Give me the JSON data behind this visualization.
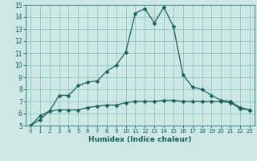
{
  "xlabel": "Humidex (Indice chaleur)",
  "background_color": "#cce8e4",
  "grid_color": "#8bbdb8",
  "line_color": "#1a5f5a",
  "spine_color": "#3a7f7a",
  "xlim": [
    -0.5,
    23.5
  ],
  "ylim": [
    5,
    15
  ],
  "xticks": [
    0,
    1,
    2,
    3,
    4,
    5,
    6,
    7,
    8,
    9,
    10,
    11,
    12,
    13,
    14,
    15,
    16,
    17,
    18,
    19,
    20,
    21,
    22,
    23
  ],
  "yticks": [
    5,
    6,
    7,
    8,
    9,
    10,
    11,
    12,
    13,
    14,
    15
  ],
  "line1_x": [
    0,
    1,
    2,
    3,
    4,
    5,
    6,
    7,
    8,
    9,
    10,
    11,
    12,
    13,
    14,
    15,
    16,
    17,
    18,
    19,
    20,
    21,
    22,
    23
  ],
  "line1_y": [
    5.0,
    5.5,
    6.2,
    7.5,
    7.5,
    8.3,
    8.6,
    8.7,
    9.5,
    10.0,
    11.1,
    14.3,
    14.7,
    13.5,
    14.8,
    13.2,
    9.2,
    8.2,
    8.0,
    7.5,
    7.1,
    7.0,
    6.5,
    6.3
  ],
  "line2_x": [
    0,
    1,
    2,
    3,
    4,
    5,
    6,
    7,
    8,
    9,
    10,
    11,
    12,
    13,
    14,
    15,
    16,
    17,
    18,
    19,
    20,
    21,
    22,
    23
  ],
  "line2_y": [
    5.0,
    5.8,
    6.2,
    6.3,
    6.3,
    6.3,
    6.5,
    6.6,
    6.7,
    6.7,
    6.9,
    7.0,
    7.0,
    7.0,
    7.1,
    7.1,
    7.0,
    7.0,
    7.0,
    7.0,
    7.0,
    6.9,
    6.4,
    6.3
  ],
  "marker": "D",
  "markersize": 2.5,
  "linewidth": 0.9,
  "tick_labelsize": 5.0,
  "xlabel_fontsize": 6.5,
  "xlabel_fontweight": "bold"
}
